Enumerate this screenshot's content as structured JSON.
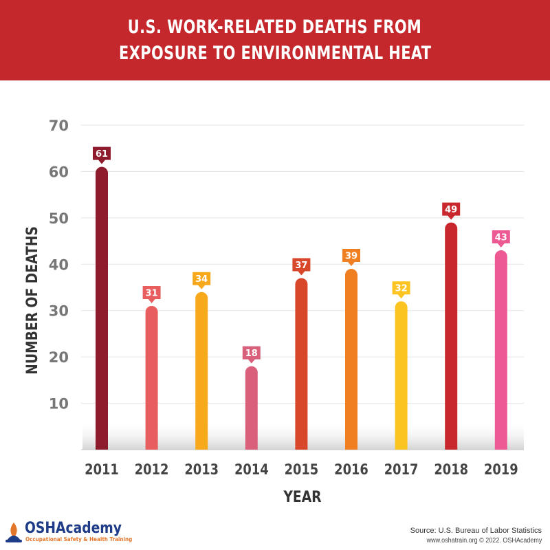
{
  "header": {
    "title_line1": "U.S. WORK-RELATED DEATHS FROM",
    "title_line2": "EXPOSURE TO ENVIRONMENTAL HEAT"
  },
  "chart_data": {
    "type": "bar",
    "title": "U.S. WORK-RELATED DEATHS FROM EXPOSURE TO ENVIRONMENTAL HEAT",
    "xlabel": "YEAR",
    "ylabel": "NUMBER OF DEATHS",
    "categories": [
      "2011",
      "2012",
      "2013",
      "2014",
      "2015",
      "2016",
      "2017",
      "2018",
      "2019"
    ],
    "values": [
      61,
      31,
      34,
      18,
      37,
      39,
      32,
      49,
      43
    ],
    "colors": [
      "#8e1b2b",
      "#e85d5d",
      "#f7a81b",
      "#d8607a",
      "#d9472b",
      "#f07f22",
      "#fcc420",
      "#c8272d",
      "#ed5993"
    ],
    "ylim": [
      0,
      70
    ],
    "yticks": [
      "10",
      "20",
      "30",
      "40",
      "50",
      "60",
      "70"
    ],
    "grid": true,
    "legend": "none"
  },
  "footer": {
    "logo_text": "OSHAcademy",
    "logo_tagline": "Occupational Safety & Health Training",
    "source": "Source: U.S. Bureau of Labor Statistics",
    "credit": "www.oshatrain.org © 2022. OSHAcademy"
  }
}
